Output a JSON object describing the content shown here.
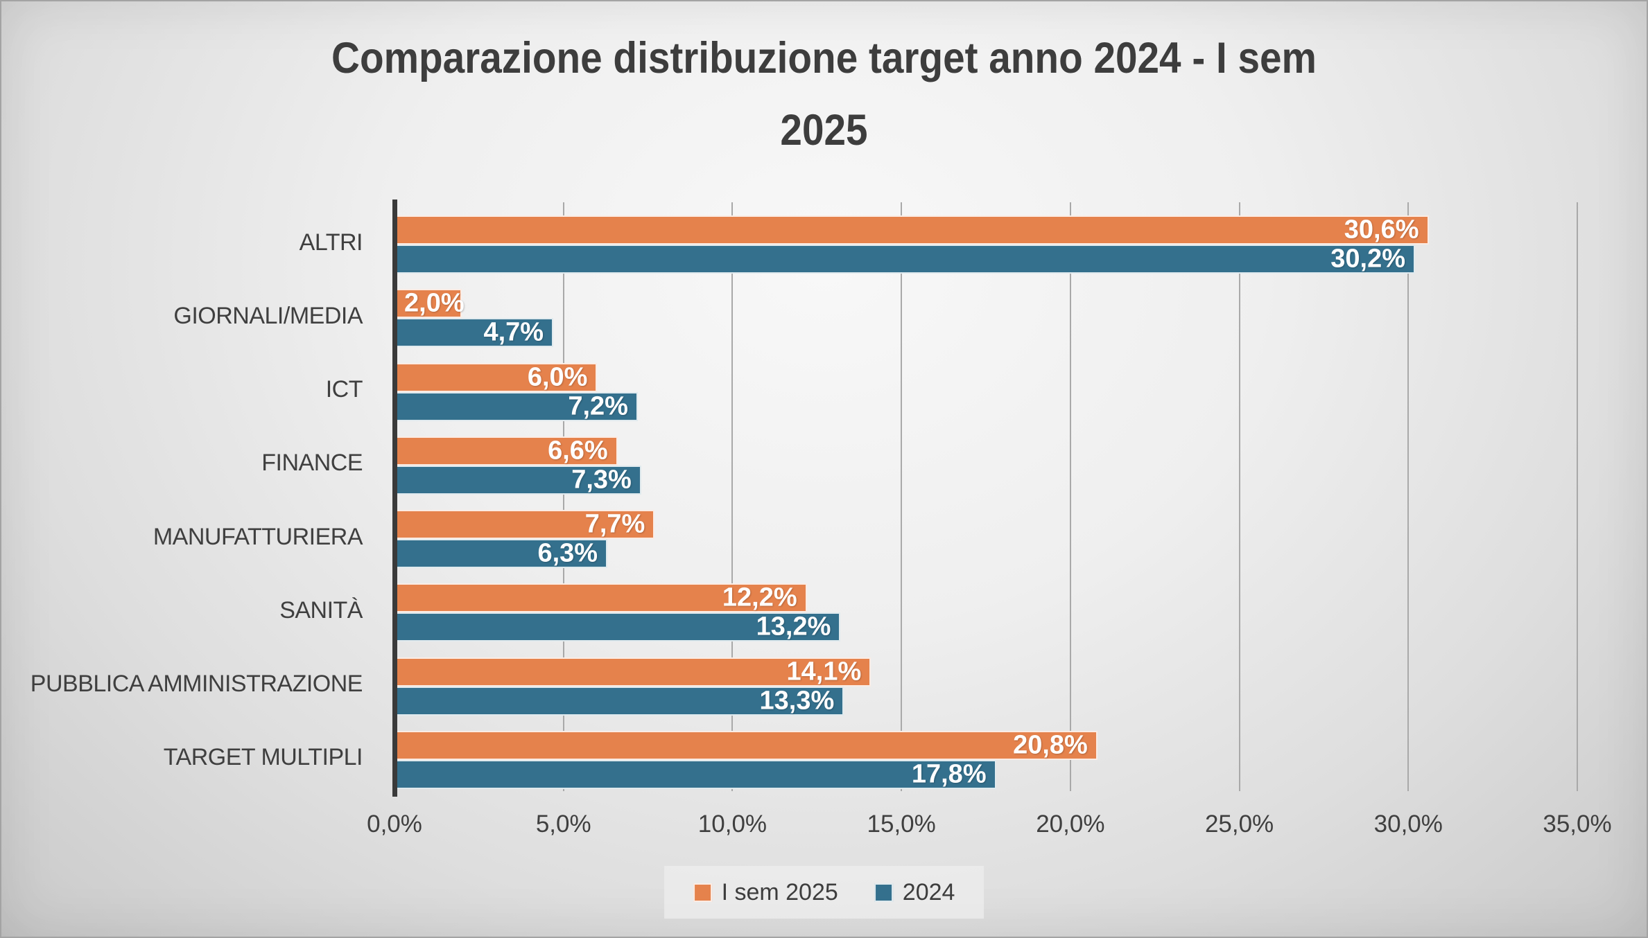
{
  "title_lines": [
    "Comparazione distribuzione target anno 2024 - I sem",
    "2025"
  ],
  "chart_data": {
    "type": "bar",
    "orientation": "horizontal",
    "title": "Comparazione distribuzione target anno 2024 - I sem 2025",
    "categories": [
      "ALTRI",
      "GIORNALI/MEDIA",
      "ICT",
      "FINANCE",
      "MANUFATTURIERA",
      "SANITÀ",
      "PUBBLICA AMMINISTRAZIONE",
      "TARGET MULTIPLI"
    ],
    "series": [
      {
        "name": "I sem 2025",
        "color": "#E5824C",
        "values": [
          30.6,
          2.0,
          6.0,
          6.6,
          7.7,
          12.2,
          14.1,
          20.8
        ],
        "labels": [
          "30,6%",
          "2,0%",
          "6,0%",
          "6,6%",
          "7,7%",
          "12,2%",
          "14,1%",
          "20,8%"
        ]
      },
      {
        "name": "2024",
        "color": "#34708D",
        "values": [
          30.2,
          4.7,
          7.2,
          7.3,
          6.3,
          13.2,
          13.3,
          17.8
        ],
        "labels": [
          "30,2%",
          "4,7%",
          "7,2%",
          "7,3%",
          "6,3%",
          "13,2%",
          "13,3%",
          "17,8%"
        ]
      }
    ],
    "xlabel": "",
    "ylabel": "",
    "xlim": [
      0,
      35
    ],
    "x_ticks": [
      "0,0%",
      "5,0%",
      "10,0%",
      "15,0%",
      "20,0%",
      "25,0%",
      "30,0%",
      "35,0%"
    ],
    "grid": true,
    "legend_position": "bottom"
  },
  "legend": {
    "items": [
      {
        "label": "I sem 2025",
        "color": "#E5824C"
      },
      {
        "label": "2024",
        "color": "#34708D"
      }
    ]
  },
  "colors": {
    "axis": "#3a3a3a",
    "gridline": "#a9a9a9",
    "title_text": "#3d3d3d",
    "category_text": "#3f3f3f",
    "bar_value_text": "#ffffff"
  }
}
